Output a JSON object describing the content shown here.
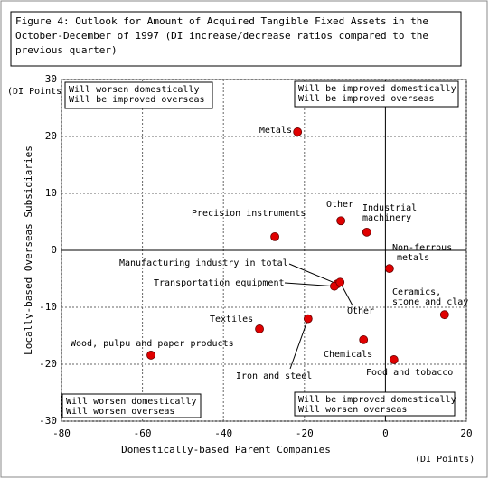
{
  "chart_data": {
    "type": "scatter",
    "title": [
      "Figure 4: Outlook for Amount of Acquired Tangible Fixed Assets in the",
      "October-December of 1997 (DI increase/decrease ratios compared to the",
      "previous quarter)"
    ],
    "xlabel": "Domestically-based Parent Companies",
    "ylabel": "Locally-based Overseas Subsidiaries",
    "x_unit": "(DI Points)",
    "y_unit": "(DI Points)",
    "xlim": [
      -80,
      20
    ],
    "xticks": [
      -80,
      -60,
      -40,
      -20,
      0,
      20
    ],
    "ylim": [
      -30,
      30
    ],
    "yticks": [
      -30,
      -20,
      -10,
      0,
      10,
      20,
      30
    ],
    "grid": true,
    "color": "#e00000",
    "quadrants": [
      [
        "Will worsen domestically",
        "Will be improved overseas"
      ],
      [
        "Will be improved domestically",
        "Will be improved overseas"
      ],
      [
        "Will worsen domestically",
        "Will worsen overseas"
      ],
      [
        "Will be improved domestically",
        "Will worsen overseas"
      ]
    ],
    "points": [
      {
        "label": [
          "Metals"
        ],
        "x": -21.7,
        "y": 20.8
      },
      {
        "label": [
          "Precision instruments"
        ],
        "x": -27.3,
        "y": 2.4
      },
      {
        "label": [
          "Other"
        ],
        "x": -11,
        "y": 5.2
      },
      {
        "label": [
          "Industrial",
          "machinery"
        ],
        "x": -4.6,
        "y": 3.2
      },
      {
        "label": [
          "Non-ferrous",
          "metals"
        ],
        "x": 1,
        "y": -3.2
      },
      {
        "label": [
          "Manufacturing industry in total"
        ],
        "x": -11.9,
        "y": -5.9
      },
      {
        "label": [
          "Transportation equipment"
        ],
        "x": -12.6,
        "y": -6.3
      },
      {
        "label": [
          "Other"
        ],
        "x": -11.2,
        "y": -5.6
      },
      {
        "label": [
          "Ceramics,",
          "stone and clay"
        ],
        "x": 14.6,
        "y": -11.3
      },
      {
        "label": [
          "Textiles"
        ],
        "x": -31.1,
        "y": -13.8
      },
      {
        "label": [
          "Iron and steel"
        ],
        "x": -19.1,
        "y": -12
      },
      {
        "label": [
          "Chemicals"
        ],
        "x": -5.4,
        "y": -15.7
      },
      {
        "label": [
          "Food and tobacco"
        ],
        "x": 2.1,
        "y": -19.2
      },
      {
        "label": [
          "Wood, pulpu and paper products"
        ],
        "x": -57.9,
        "y": -18.4
      }
    ]
  }
}
